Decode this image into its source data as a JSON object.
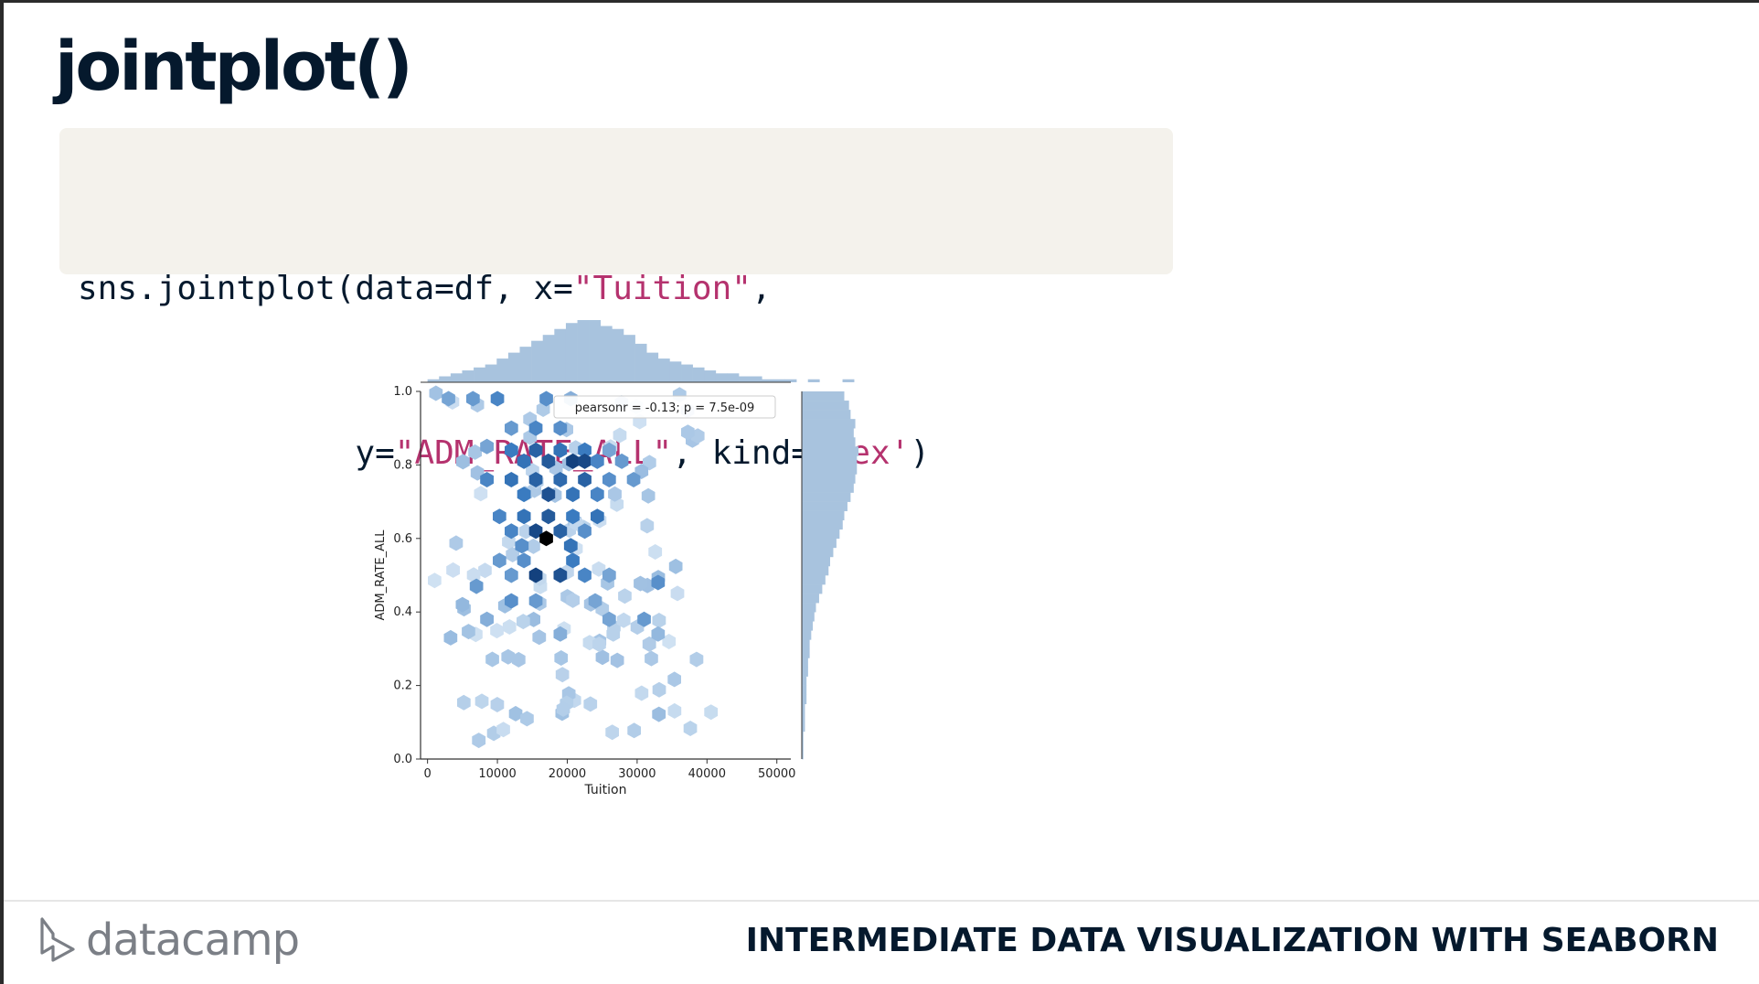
{
  "slide": {
    "title": "jointplot()",
    "course": "INTERMEDIATE DATA VISUALIZATION WITH SEABORN",
    "logo_text": "datacamp"
  },
  "code": {
    "line1": [
      {
        "text": "sns.jointplot(data=df, x=",
        "kind": "plain"
      },
      {
        "text": "\"Tuition\"",
        "kind": "str"
      },
      {
        "text": ",",
        "kind": "plain"
      }
    ],
    "line2": [
      {
        "text": "              y=",
        "kind": "plain"
      },
      {
        "text": "\"ADM_RATE_ALL\"",
        "kind": "str"
      },
      {
        "text": ", kind=",
        "kind": "plain"
      },
      {
        "text": "'hex'",
        "kind": "str"
      },
      {
        "text": ")",
        "kind": "plain"
      }
    ]
  },
  "chart_data": {
    "type": "hexbin",
    "xlabel": "Tuition",
    "ylabel": "ADM_RATE_ALL",
    "xlim": [
      -1000,
      52000
    ],
    "ylim": [
      0,
      1
    ],
    "xticks": [
      0,
      10000,
      20000,
      30000,
      40000,
      50000
    ],
    "yticks": [
      0.0,
      0.2,
      0.4,
      0.6,
      0.8,
      1.0
    ],
    "ytick_labels": [
      "0.0",
      "0.2",
      "0.4",
      "0.6",
      "0.8",
      "1.0"
    ],
    "annotation": "pearsonr = -0.13; p = 7.5e-09",
    "colors": {
      "dark": "#08306b",
      "mid": "#3a7bc0",
      "light": "#deebf7",
      "marginal": "#a8c3de",
      "axis": "#333333"
    },
    "hexbins": [
      {
        "x": 3000,
        "y": 0.98,
        "c": 0.35
      },
      {
        "x": 6500,
        "y": 0.98,
        "c": 0.4
      },
      {
        "x": 10000,
        "y": 0.98,
        "c": 0.5
      },
      {
        "x": 17000,
        "y": 0.98,
        "c": 0.45
      },
      {
        "x": 20500,
        "y": 0.98,
        "c": 0.3
      },
      {
        "x": 12000,
        "y": 0.9,
        "c": 0.4
      },
      {
        "x": 15500,
        "y": 0.9,
        "c": 0.5
      },
      {
        "x": 19000,
        "y": 0.9,
        "c": 0.45
      },
      {
        "x": 8500,
        "y": 0.85,
        "c": 0.35
      },
      {
        "x": 12000,
        "y": 0.84,
        "c": 0.55
      },
      {
        "x": 15500,
        "y": 0.84,
        "c": 0.7
      },
      {
        "x": 19000,
        "y": 0.84,
        "c": 0.6
      },
      {
        "x": 22500,
        "y": 0.84,
        "c": 0.55
      },
      {
        "x": 26000,
        "y": 0.84,
        "c": 0.35
      },
      {
        "x": 13800,
        "y": 0.81,
        "c": 0.6
      },
      {
        "x": 17300,
        "y": 0.81,
        "c": 0.75
      },
      {
        "x": 20800,
        "y": 0.81,
        "c": 0.9
      },
      {
        "x": 22500,
        "y": 0.81,
        "c": 0.85
      },
      {
        "x": 24300,
        "y": 0.81,
        "c": 0.5
      },
      {
        "x": 27800,
        "y": 0.81,
        "c": 0.4
      },
      {
        "x": 8500,
        "y": 0.76,
        "c": 0.5
      },
      {
        "x": 12000,
        "y": 0.76,
        "c": 0.6
      },
      {
        "x": 15500,
        "y": 0.76,
        "c": 0.7
      },
      {
        "x": 19000,
        "y": 0.76,
        "c": 0.65
      },
      {
        "x": 22500,
        "y": 0.76,
        "c": 0.7
      },
      {
        "x": 26000,
        "y": 0.76,
        "c": 0.45
      },
      {
        "x": 29500,
        "y": 0.76,
        "c": 0.4
      },
      {
        "x": 17300,
        "y": 0.72,
        "c": 0.8
      },
      {
        "x": 13800,
        "y": 0.72,
        "c": 0.55
      },
      {
        "x": 20800,
        "y": 0.72,
        "c": 0.6
      },
      {
        "x": 24300,
        "y": 0.72,
        "c": 0.5
      },
      {
        "x": 10300,
        "y": 0.66,
        "c": 0.5
      },
      {
        "x": 13800,
        "y": 0.66,
        "c": 0.6
      },
      {
        "x": 17300,
        "y": 0.66,
        "c": 0.75
      },
      {
        "x": 20800,
        "y": 0.66,
        "c": 0.55
      },
      {
        "x": 24300,
        "y": 0.66,
        "c": 0.6
      },
      {
        "x": 15500,
        "y": 0.62,
        "c": 0.85
      },
      {
        "x": 19000,
        "y": 0.62,
        "c": 0.7
      },
      {
        "x": 12000,
        "y": 0.62,
        "c": 0.5
      },
      {
        "x": 22500,
        "y": 0.62,
        "c": 0.45
      },
      {
        "x": 17000,
        "y": 0.6,
        "c": 1.0
      },
      {
        "x": 20500,
        "y": 0.58,
        "c": 0.6
      },
      {
        "x": 13500,
        "y": 0.58,
        "c": 0.45
      },
      {
        "x": 10300,
        "y": 0.54,
        "c": 0.4
      },
      {
        "x": 13800,
        "y": 0.54,
        "c": 0.45
      },
      {
        "x": 20800,
        "y": 0.54,
        "c": 0.55
      },
      {
        "x": 15500,
        "y": 0.5,
        "c": 0.9
      },
      {
        "x": 19000,
        "y": 0.5,
        "c": 0.8
      },
      {
        "x": 12000,
        "y": 0.5,
        "c": 0.4
      },
      {
        "x": 22500,
        "y": 0.5,
        "c": 0.5
      },
      {
        "x": 26000,
        "y": 0.5,
        "c": 0.35
      },
      {
        "x": 33000,
        "y": 0.48,
        "c": 0.45
      },
      {
        "x": 7000,
        "y": 0.47,
        "c": 0.4
      },
      {
        "x": 12000,
        "y": 0.43,
        "c": 0.45
      },
      {
        "x": 15500,
        "y": 0.43,
        "c": 0.4
      },
      {
        "x": 24000,
        "y": 0.43,
        "c": 0.35
      },
      {
        "x": 31000,
        "y": 0.38,
        "c": 0.4
      },
      {
        "x": 5000,
        "y": 0.42,
        "c": 0.25
      },
      {
        "x": 8500,
        "y": 0.38,
        "c": 0.3
      },
      {
        "x": 26000,
        "y": 0.38,
        "c": 0.35
      },
      {
        "x": 19000,
        "y": 0.34,
        "c": 0.3
      },
      {
        "x": 33000,
        "y": 0.34,
        "c": 0.25
      }
    ],
    "hexbin_faint_points": 120,
    "marginal_x": {
      "bin_start": 0,
      "bin_width": 1650,
      "counts": [
        1,
        2,
        3,
        4,
        5,
        6,
        8,
        10,
        12,
        14,
        16,
        18,
        20,
        21,
        21,
        19,
        18,
        16,
        13,
        10,
        8,
        7,
        6,
        5,
        4,
        3,
        3,
        2,
        2,
        1,
        1,
        1,
        0,
        1,
        0,
        0,
        1,
        0,
        0
      ]
    },
    "marginal_y": {
      "bin_start": 0,
      "bin_width": 0.025,
      "counts": [
        1,
        1,
        1,
        2,
        2,
        2,
        3,
        3,
        3,
        4,
        4,
        5,
        5,
        6,
        7,
        8,
        9,
        11,
        13,
        15,
        17,
        18,
        20,
        22,
        24,
        26,
        27,
        29,
        31,
        33,
        34,
        35,
        35,
        36,
        34,
        33,
        34,
        31,
        30,
        27
      ]
    }
  }
}
